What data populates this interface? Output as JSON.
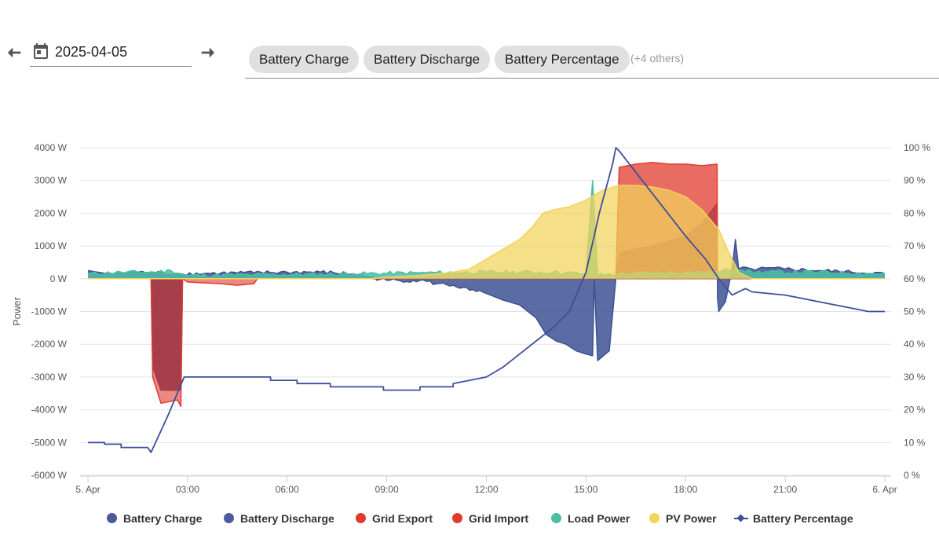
{
  "toolbar": {
    "date_value": "2025-04-05",
    "chips": [
      "Battery Charge",
      "Battery Discharge",
      "Battery Percentage"
    ],
    "more_label": "(+4 others)"
  },
  "chart_data": {
    "type": "area",
    "x_unit": "hours",
    "xlim": [
      0,
      24
    ],
    "x_ticks": [
      {
        "x": 0,
        "label": "5. Apr"
      },
      {
        "x": 3,
        "label": "03:00"
      },
      {
        "x": 6,
        "label": "06:00"
      },
      {
        "x": 9,
        "label": "09:00"
      },
      {
        "x": 12,
        "label": "12:00"
      },
      {
        "x": 15,
        "label": "15:00"
      },
      {
        "x": 18,
        "label": "18:00"
      },
      {
        "x": 21,
        "label": "21:00"
      },
      {
        "x": 24,
        "label": "6. Apr"
      }
    ],
    "y_left": {
      "label": "Power",
      "min": -6000,
      "max": 4000,
      "step": 1000,
      "unit": " W"
    },
    "y_right": {
      "label": "",
      "min": 0,
      "max": 100,
      "step": 10,
      "unit": " %"
    },
    "grid": true,
    "legend_position": "bottom",
    "series": [
      {
        "name": "Battery Charge",
        "kind": "area",
        "axis": "left",
        "color": "#4a3d6e",
        "opacity": 0.95,
        "points": [
          [
            0,
            0
          ],
          [
            1.9,
            0
          ],
          [
            1.95,
            -2700
          ],
          [
            2.2,
            -3400
          ],
          [
            2.8,
            -3400
          ],
          [
            2.85,
            0
          ],
          [
            24,
            0
          ]
        ]
      },
      {
        "name": "Battery Discharge",
        "kind": "area",
        "axis": "left",
        "color": "#3e5193",
        "opacity": 0.85,
        "points": [
          [
            0,
            250
          ],
          [
            0.3,
            200
          ],
          [
            0.6,
            150
          ],
          [
            1,
            180
          ],
          [
            1.5,
            200
          ],
          [
            1.9,
            180
          ],
          [
            2.85,
            150
          ],
          [
            4,
            170
          ],
          [
            5,
            180
          ],
          [
            6,
            200
          ],
          [
            7,
            200
          ],
          [
            8,
            150
          ],
          [
            8.5,
            50
          ],
          [
            9,
            -50
          ],
          [
            10,
            -50
          ],
          [
            10.5,
            -150
          ],
          [
            11,
            -200
          ],
          [
            11.5,
            -350
          ],
          [
            12,
            -450
          ],
          [
            12.5,
            -650
          ],
          [
            13,
            -800
          ],
          [
            13.5,
            -1200
          ],
          [
            13.8,
            -1700
          ],
          [
            14.1,
            -1900
          ],
          [
            14.4,
            -2000
          ],
          [
            14.7,
            -2200
          ],
          [
            15,
            -2300
          ],
          [
            15.2,
            -2350
          ],
          [
            15.25,
            0
          ],
          [
            15.35,
            -2500
          ],
          [
            15.7,
            -2200
          ],
          [
            15.9,
            0
          ],
          [
            16,
            800
          ],
          [
            17,
            1000
          ],
          [
            18,
            1300
          ],
          [
            18.5,
            1700
          ],
          [
            18.95,
            2300
          ],
          [
            18.96,
            -600
          ],
          [
            19,
            -1000
          ],
          [
            19.2,
            -700
          ],
          [
            19.4,
            300
          ],
          [
            19.5,
            1200
          ],
          [
            19.6,
            300
          ],
          [
            20,
            300
          ],
          [
            21,
            300
          ],
          [
            22,
            250
          ],
          [
            23,
            200
          ],
          [
            24,
            150
          ]
        ]
      },
      {
        "name": "Grid Export",
        "kind": "area",
        "axis": "left",
        "color": "#e03b2e",
        "opacity": 0.6,
        "points": [
          [
            1.9,
            0
          ],
          [
            1.95,
            -3000
          ],
          [
            2.2,
            -3800
          ],
          [
            2.7,
            -3700
          ],
          [
            2.8,
            -3900
          ],
          [
            2.85,
            0
          ],
          [
            3,
            -100
          ],
          [
            4,
            -150
          ],
          [
            4.5,
            -200
          ],
          [
            5,
            -150
          ],
          [
            5.1,
            0
          ],
          [
            24,
            0
          ]
        ]
      },
      {
        "name": "Grid Import",
        "kind": "area",
        "axis": "left",
        "color": "#e03b2e",
        "opacity": 0.75,
        "points": [
          [
            15.9,
            0
          ],
          [
            16,
            3400
          ],
          [
            16.5,
            3500
          ],
          [
            17,
            3550
          ],
          [
            17.5,
            3500
          ],
          [
            18,
            3500
          ],
          [
            18.5,
            3450
          ],
          [
            18.95,
            3500
          ],
          [
            18.96,
            0
          ],
          [
            24,
            0
          ]
        ]
      },
      {
        "name": "Load Power",
        "kind": "area",
        "axis": "left",
        "color": "#4bbea3",
        "opacity": 0.85,
        "points": [
          [
            0,
            150
          ],
          [
            1,
            200
          ],
          [
            2,
            200
          ],
          [
            2.5,
            250
          ],
          [
            3,
            100
          ],
          [
            5,
            120
          ],
          [
            8,
            150
          ],
          [
            10,
            180
          ],
          [
            12,
            200
          ],
          [
            14,
            200
          ],
          [
            15,
            150
          ],
          [
            15.2,
            3000
          ],
          [
            15.35,
            100
          ],
          [
            16,
            150
          ],
          [
            18,
            200
          ],
          [
            19,
            200
          ],
          [
            19.5,
            350
          ],
          [
            20,
            200
          ],
          [
            22,
            200
          ],
          [
            24,
            150
          ]
        ]
      },
      {
        "name": "PV Power",
        "kind": "area",
        "axis": "left",
        "color": "#f3d35c",
        "opacity": 0.72,
        "points": [
          [
            0,
            0
          ],
          [
            8.5,
            0
          ],
          [
            9,
            50
          ],
          [
            10,
            100
          ],
          [
            11,
            200
          ],
          [
            11.5,
            300
          ],
          [
            12,
            600
          ],
          [
            12.5,
            900
          ],
          [
            13,
            1200
          ],
          [
            13.4,
            1600
          ],
          [
            13.7,
            2000
          ],
          [
            14,
            2100
          ],
          [
            14.5,
            2200
          ],
          [
            15,
            2400
          ],
          [
            15.5,
            2700
          ],
          [
            16,
            2850
          ],
          [
            16.5,
            2850
          ],
          [
            17,
            2800
          ],
          [
            17.5,
            2700
          ],
          [
            18,
            2500
          ],
          [
            18.5,
            2100
          ],
          [
            19,
            1500
          ],
          [
            19.3,
            800
          ],
          [
            19.6,
            200
          ],
          [
            20,
            0
          ],
          [
            24,
            0
          ]
        ]
      },
      {
        "name": "Battery Percentage",
        "kind": "line",
        "axis": "right",
        "color": "#3d4f9a",
        "points": [
          [
            0,
            10
          ],
          [
            0.5,
            10
          ],
          [
            0.5,
            9.5
          ],
          [
            1,
            9.5
          ],
          [
            1,
            8.5
          ],
          [
            1.8,
            8.5
          ],
          [
            1.9,
            7
          ],
          [
            2.4,
            18
          ],
          [
            2.9,
            30
          ],
          [
            5.5,
            30
          ],
          [
            5.5,
            29
          ],
          [
            6.3,
            29
          ],
          [
            6.3,
            28
          ],
          [
            7.3,
            28
          ],
          [
            7.3,
            27
          ],
          [
            8.9,
            27
          ],
          [
            8.9,
            26
          ],
          [
            10,
            26
          ],
          [
            10,
            27
          ],
          [
            11,
            27
          ],
          [
            11,
            28
          ],
          [
            12,
            30
          ],
          [
            12.5,
            33
          ],
          [
            13,
            37
          ],
          [
            13.5,
            41
          ],
          [
            14,
            45
          ],
          [
            14.5,
            50
          ],
          [
            15,
            62
          ],
          [
            15.4,
            80
          ],
          [
            15.8,
            95
          ],
          [
            15.9,
            100
          ],
          [
            16,
            99
          ],
          [
            17,
            86
          ],
          [
            18,
            73
          ],
          [
            18.6,
            66
          ],
          [
            19,
            60
          ],
          [
            19.4,
            55
          ],
          [
            19.8,
            57
          ],
          [
            20,
            56
          ],
          [
            21,
            55
          ],
          [
            21.5,
            54
          ],
          [
            22,
            53
          ],
          [
            23,
            51
          ],
          [
            23.5,
            50
          ],
          [
            24,
            50
          ]
        ]
      }
    ]
  },
  "legend": [
    "Battery Charge",
    "Battery Discharge",
    "Grid Export",
    "Grid Import",
    "Load Power",
    "PV Power",
    "Battery Percentage"
  ],
  "legend_colors": [
    "#4a5a9a",
    "#4a5a9a",
    "#e03b2e",
    "#e03b2e",
    "#4bbea3",
    "#f3d35c",
    "#3d4f9a"
  ]
}
